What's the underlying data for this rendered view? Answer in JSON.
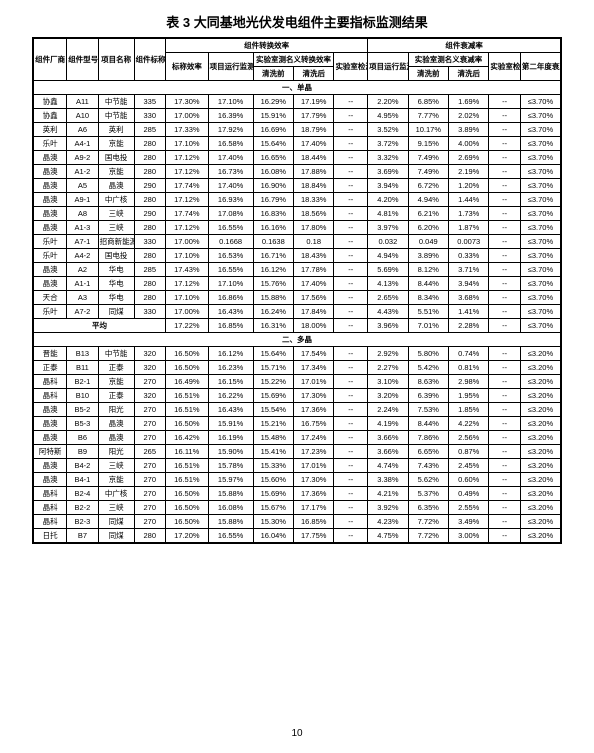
{
  "title": "表 3   大同基地光伏发电组件主要指标监测结果",
  "page_num": "10",
  "header": {
    "group1": "组件转换效率",
    "group2": "组件衰减率",
    "h1": "组件厂商",
    "h2": "组件型号",
    "h3": "项目名称",
    "h4": "组件标称功率(W)",
    "h5": "标称效率",
    "h6": "项目运行监测名义转换效率",
    "h7a": "实验室测名义转换效率",
    "h7b": "清洗前",
    "h7c": "清洗后",
    "h8": "实验室检测效率",
    "h9": "项目运行监测名义衰减率",
    "h10a": "实验室测名义衰减率",
    "h10b": "清洗前",
    "h10c": "清洗后",
    "h11": "实验室检测衰减率",
    "h12": "第二年度衰减要求"
  },
  "section1": "一、单晶",
  "section2": "二、多晶",
  "avg_label": "平均",
  "rows1": [
    [
      "协鑫",
      "A11",
      "中节能",
      "335",
      "17.30%",
      "17.10%",
      "16.29%",
      "17.19%",
      "--",
      "2.20%",
      "6.85%",
      "1.69%",
      "--",
      "≤3.70%"
    ],
    [
      "协鑫",
      "A10",
      "中节能",
      "330",
      "17.00%",
      "16.39%",
      "15.91%",
      "17.79%",
      "--",
      "4.95%",
      "7.77%",
      "2.02%",
      "--",
      "≤3.70%"
    ],
    [
      "英利",
      "A6",
      "英利",
      "285",
      "17.33%",
      "17.92%",
      "16.69%",
      "18.79%",
      "--",
      "3.52%",
      "10.17%",
      "3.89%",
      "--",
      "≤3.70%"
    ],
    [
      "乐叶",
      "A4-1",
      "京能",
      "280",
      "17.10%",
      "16.58%",
      "15.64%",
      "17.40%",
      "--",
      "3.72%",
      "9.15%",
      "4.00%",
      "--",
      "≤3.70%"
    ],
    [
      "晶澳",
      "A9-2",
      "国电投",
      "280",
      "17.12%",
      "17.40%",
      "16.65%",
      "18.44%",
      "--",
      "3.32%",
      "7.49%",
      "2.69%",
      "--",
      "≤3.70%"
    ],
    [
      "晶澳",
      "A1-2",
      "京能",
      "280",
      "17.12%",
      "16.73%",
      "16.08%",
      "17.88%",
      "--",
      "3.69%",
      "7.49%",
      "2.19%",
      "--",
      "≤3.70%"
    ],
    [
      "晶澳",
      "A5",
      "晶澳",
      "290",
      "17.74%",
      "17.40%",
      "16.90%",
      "18.84%",
      "--",
      "3.94%",
      "6.72%",
      "1.20%",
      "--",
      "≤3.70%"
    ],
    [
      "晶澳",
      "A9-1",
      "中广核",
      "280",
      "17.12%",
      "16.93%",
      "16.79%",
      "18.33%",
      "--",
      "4.20%",
      "4.94%",
      "1.44%",
      "--",
      "≤3.70%"
    ],
    [
      "晶澳",
      "A8",
      "三峡",
      "290",
      "17.74%",
      "17.08%",
      "16.83%",
      "18.56%",
      "--",
      "4.81%",
      "6.21%",
      "1.73%",
      "--",
      "≤3.70%"
    ],
    [
      "晶澳",
      "A1-3",
      "三峡",
      "280",
      "17.12%",
      "16.55%",
      "16.16%",
      "17.80%",
      "--",
      "3.97%",
      "6.20%",
      "1.87%",
      "--",
      "≤3.70%"
    ],
    [
      "乐叶",
      "A7-1",
      "招商新能源",
      "330",
      "17.00%",
      "0.1668",
      "0.1638",
      "0.18",
      "--",
      "0.032",
      "0.049",
      "0.0073",
      "--",
      "≤3.70%"
    ],
    [
      "乐叶",
      "A4-2",
      "国电投",
      "280",
      "17.10%",
      "16.53%",
      "16.71%",
      "18.43%",
      "--",
      "4.94%",
      "3.89%",
      "0.33%",
      "--",
      "≤3.70%"
    ],
    [
      "晶澳",
      "A2",
      "华电",
      "285",
      "17.43%",
      "16.55%",
      "16.12%",
      "17.78%",
      "--",
      "5.69%",
      "8.12%",
      "3.71%",
      "--",
      "≤3.70%"
    ],
    [
      "晶澳",
      "A1-1",
      "华电",
      "280",
      "17.12%",
      "17.10%",
      "15.76%",
      "17.40%",
      "--",
      "4.13%",
      "8.44%",
      "3.94%",
      "--",
      "≤3.70%"
    ],
    [
      "天合",
      "A3",
      "华电",
      "280",
      "17.10%",
      "16.86%",
      "15.88%",
      "17.56%",
      "--",
      "2.65%",
      "8.34%",
      "3.68%",
      "--",
      "≤3.70%"
    ],
    [
      "乐叶",
      "A7-2",
      "同煤",
      "330",
      "17.00%",
      "16.43%",
      "16.24%",
      "17.84%",
      "--",
      "4.43%",
      "5.51%",
      "1.41%",
      "--",
      "≤3.70%"
    ]
  ],
  "avg1": [
    "",
    "",
    "",
    "",
    "17.22%",
    "16.85%",
    "16.31%",
    "18.00%",
    "--",
    "3.96%",
    "7.01%",
    "2.28%",
    "--",
    "≤3.70%"
  ],
  "rows2": [
    [
      "晋能",
      "B13",
      "中节能",
      "320",
      "16.50%",
      "16.12%",
      "15.64%",
      "17.54%",
      "--",
      "2.92%",
      "5.80%",
      "0.74%",
      "--",
      "≤3.20%"
    ],
    [
      "正泰",
      "B11",
      "正泰",
      "320",
      "16.50%",
      "16.23%",
      "15.71%",
      "17.34%",
      "--",
      "2.27%",
      "5.42%",
      "0.81%",
      "--",
      "≤3.20%"
    ],
    [
      "晶科",
      "B2-1",
      "京能",
      "270",
      "16.49%",
      "16.15%",
      "15.22%",
      "17.01%",
      "--",
      "3.10%",
      "8.63%",
      "2.98%",
      "--",
      "≤3.20%"
    ],
    [
      "晶科",
      "B10",
      "正泰",
      "320",
      "16.51%",
      "16.22%",
      "15.69%",
      "17.30%",
      "--",
      "3.20%",
      "6.39%",
      "1.95%",
      "--",
      "≤3.20%"
    ],
    [
      "晶澳",
      "B5-2",
      "阳光",
      "270",
      "16.51%",
      "16.43%",
      "15.54%",
      "17.36%",
      "--",
      "2.24%",
      "7.53%",
      "1.85%",
      "--",
      "≤3.20%"
    ],
    [
      "晶澳",
      "B5-3",
      "晶澳",
      "270",
      "16.50%",
      "15.91%",
      "15.21%",
      "16.75%",
      "--",
      "4.19%",
      "8.44%",
      "4.22%",
      "--",
      "≤3.20%"
    ],
    [
      "晶澳",
      "B6",
      "晶澳",
      "270",
      "16.42%",
      "16.19%",
      "15.48%",
      "17.24%",
      "--",
      "3.66%",
      "7.86%",
      "2.56%",
      "--",
      "≤3.20%"
    ],
    [
      "阿特斯",
      "B9",
      "阳光",
      "265",
      "16.11%",
      "15.90%",
      "15.41%",
      "17.23%",
      "--",
      "3.66%",
      "6.65%",
      "0.87%",
      "--",
      "≤3.20%"
    ],
    [
      "晶澳",
      "B4-2",
      "三峡",
      "270",
      "16.51%",
      "15.78%",
      "15.33%",
      "17.01%",
      "--",
      "4.74%",
      "7.43%",
      "2.45%",
      "--",
      "≤3.20%"
    ],
    [
      "晶澳",
      "B4-1",
      "京能",
      "270",
      "16.51%",
      "15.97%",
      "15.60%",
      "17.30%",
      "--",
      "3.38%",
      "5.62%",
      "0.60%",
      "--",
      "≤3.20%"
    ],
    [
      "晶科",
      "B2-4",
      "中广核",
      "270",
      "16.50%",
      "15.88%",
      "15.69%",
      "17.36%",
      "--",
      "4.21%",
      "5.37%",
      "0.49%",
      "--",
      "≤3.20%"
    ],
    [
      "晶科",
      "B2-2",
      "三峡",
      "270",
      "16.50%",
      "16.08%",
      "15.67%",
      "17.17%",
      "--",
      "3.92%",
      "6.35%",
      "2.55%",
      "--",
      "≤3.20%"
    ],
    [
      "晶科",
      "B2-3",
      "同煤",
      "270",
      "16.50%",
      "15.88%",
      "15.30%",
      "16.85%",
      "--",
      "4.23%",
      "7.72%",
      "3.49%",
      "--",
      "≤3.20%"
    ],
    [
      "日托",
      "B7",
      "同煤",
      "280",
      "17.20%",
      "16.55%",
      "16.04%",
      "17.75%",
      "--",
      "4.75%",
      "7.72%",
      "3.00%",
      "--",
      "≤3.20%"
    ]
  ]
}
